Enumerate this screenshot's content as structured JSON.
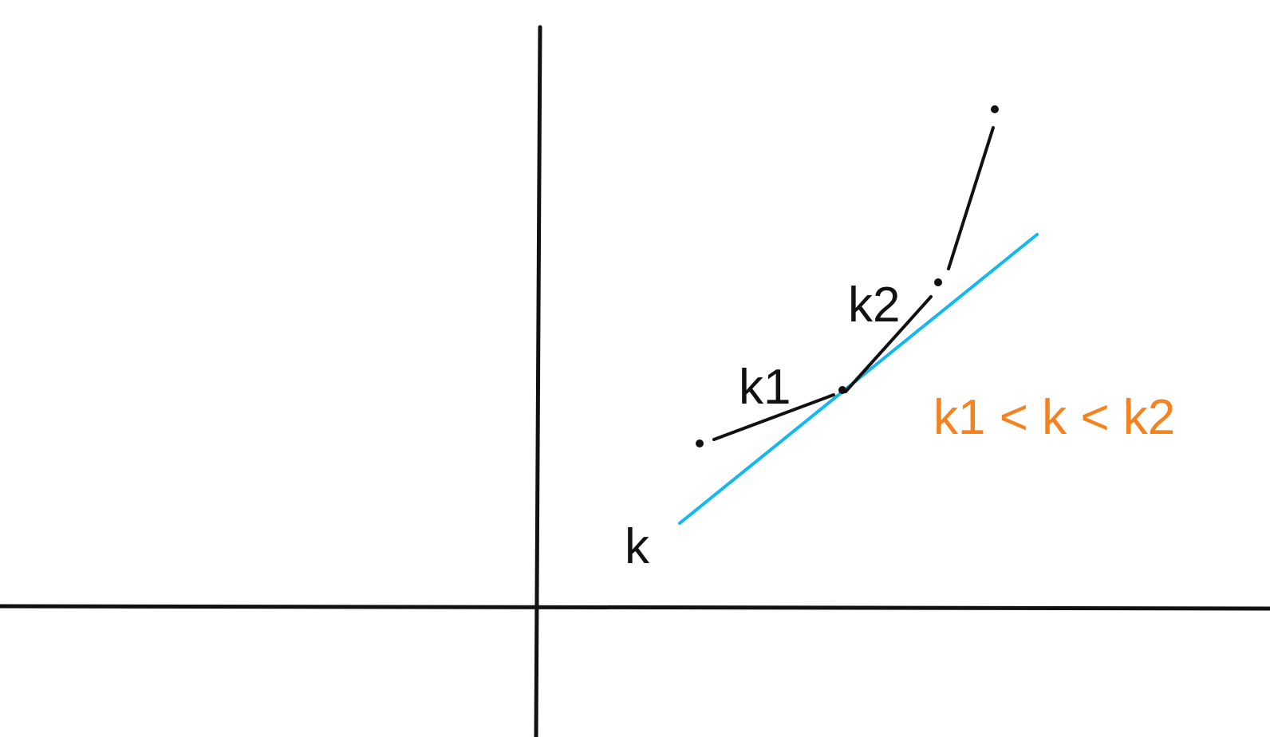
{
  "labels": {
    "k1": "k1",
    "k2": "k2",
    "k": "k",
    "relation": "k1 < k < k2"
  },
  "colors": {
    "ink": "#111111",
    "tangent": "#12B8EE",
    "relation": "#F5821F",
    "background": "#FFFFFF"
  }
}
